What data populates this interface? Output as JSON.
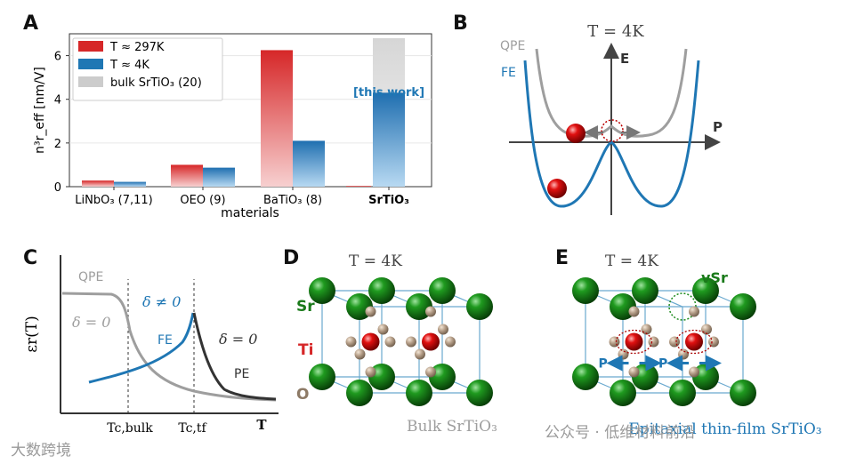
{
  "panels": {
    "A": "A",
    "B": "B",
    "C": "C",
    "D": "D",
    "E": "E"
  },
  "chart_data": [
    {
      "type": "bar",
      "panel": "A",
      "title": "",
      "xlabel": "materials",
      "ylabel": "n³r_eff [nm/V]",
      "ylim": [
        0,
        7
      ],
      "yticks": [
        "0",
        "2",
        "4",
        "6"
      ],
      "categories": [
        "LiNbO₃ (7,11)",
        "OEO (9)",
        "BaTiO₃ (8)",
        "SrTiO₃"
      ],
      "series": [
        {
          "name": "T ≈ 297K",
          "color": "#d62728",
          "values": [
            0.28,
            1.0,
            6.25,
            0.03
          ]
        },
        {
          "name": "T ≈ 4K",
          "color": "#1f77b4",
          "values": [
            0.22,
            0.87,
            2.1,
            4.3
          ]
        },
        {
          "name": "bulk SrTiO₃ (20)",
          "color": "#cccccc",
          "values": [
            null,
            null,
            null,
            6.8
          ]
        }
      ],
      "legend": [
        "T ≈ 297K",
        "T ≈ 4K",
        "bulk SrTiO₃ (20)"
      ],
      "legend_position": "top-left",
      "annotation": "[this work]"
    },
    {
      "type": "line",
      "panel": "B",
      "title": "T = 4K",
      "xlabel": "P",
      "ylabel": "E",
      "series_labels": [
        "QPE",
        "FE"
      ]
    },
    {
      "type": "line",
      "panel": "C",
      "ylabel": "εr(T)",
      "xlabel": "T",
      "xticks": [
        "Tc,bulk",
        "Tc,tf"
      ],
      "annotations": [
        "QPE",
        "δ = 0",
        "δ ≠ 0",
        "FE",
        "δ = 0",
        "PE"
      ]
    }
  ],
  "panelD": {
    "title": "T = 4K",
    "atom_labels": [
      "Sr",
      "Ti",
      "O"
    ],
    "caption": "Bulk SrTiO₃"
  },
  "panelE": {
    "title": "T = 4K",
    "vacancy_label": "vSr",
    "arrow_label": "P",
    "caption": "Epitaxial thin-film SrTiO₃"
  },
  "watermarks": {
    "left": "大数跨境",
    "right": "公众号 · 低维材料前沿"
  },
  "colors": {
    "red": "#d62728",
    "blue": "#1f77b4",
    "gray": "#9e9e9e",
    "green": "#1a7a1a",
    "sr_green": "#1e8c1e"
  }
}
